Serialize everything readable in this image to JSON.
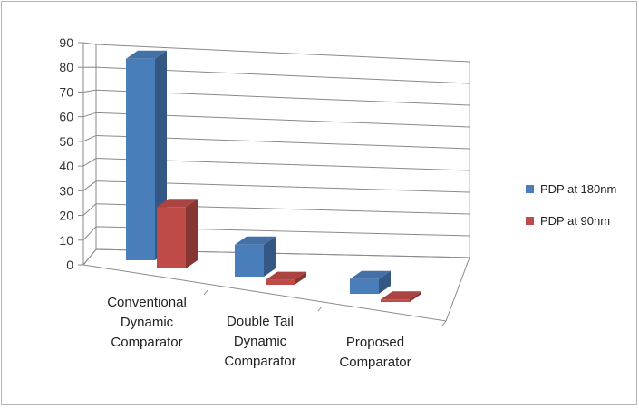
{
  "chart_data": {
    "type": "bar",
    "categories": [
      [
        "Conventional",
        "Dynamic",
        "Comparator"
      ],
      [
        "Double Tail",
        "Dynamic",
        "Comparator"
      ],
      [
        "Proposed",
        "Comparator"
      ]
    ],
    "series": [
      {
        "name": "PDP at 180nm",
        "values": [
          82,
          13,
          6
        ],
        "color": "#4a7ebb"
      },
      {
        "name": "PDP at 90nm",
        "values": [
          25,
          2,
          1
        ],
        "color": "#be4b48"
      }
    ],
    "yticks": [
      0,
      10,
      20,
      30,
      40,
      50,
      60,
      70,
      80,
      90
    ],
    "ylim": [
      0,
      90
    ],
    "grid": true,
    "legend": "right"
  }
}
